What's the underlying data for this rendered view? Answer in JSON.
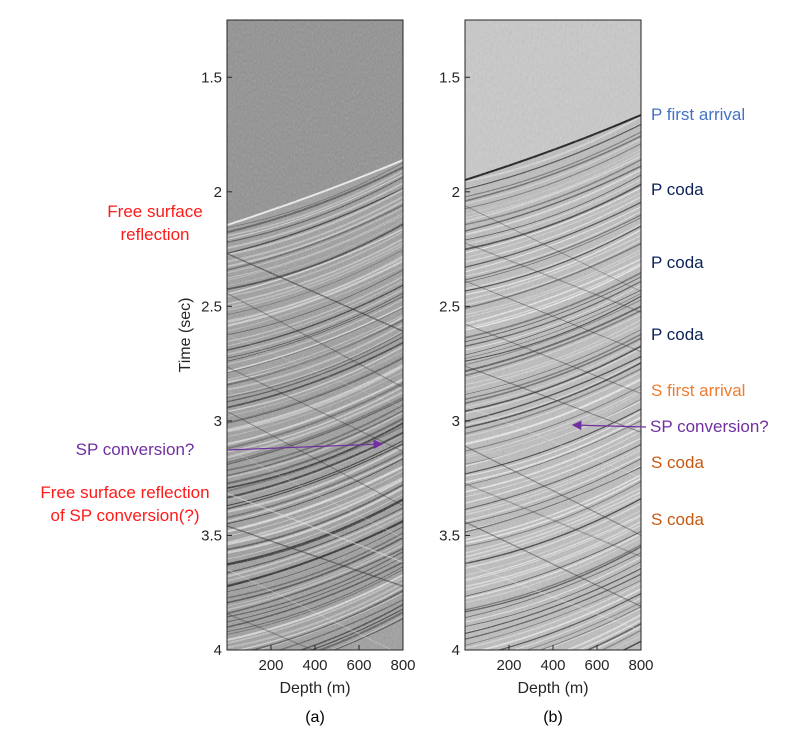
{
  "panels": [
    {
      "id": "a",
      "caption": "(a)",
      "xlabel": "Depth (m)",
      "ylabel": "Time (sec)",
      "xticks": [
        "200",
        "400",
        "600",
        "800"
      ],
      "yticks": [
        "1.5",
        "2",
        "2.5",
        "3",
        "3.5",
        "4"
      ],
      "annotations": [
        {
          "text": "Free surface",
          "color": "#ff1a1a"
        },
        {
          "text": "reflection",
          "color": "#ff1a1a"
        },
        {
          "text": "SP conversion?",
          "color": "#7030a0"
        },
        {
          "text": "Free surface reflection",
          "color": "#ff1a1a"
        },
        {
          "text": "of SP conversion(?)",
          "color": "#ff1a1a"
        }
      ]
    },
    {
      "id": "b",
      "caption": "(b)",
      "xlabel": "Depth (m)",
      "yticks": [
        "1.5",
        "2",
        "2.5",
        "3",
        "3.5",
        "4"
      ],
      "xticks": [
        "200",
        "400",
        "600",
        "800"
      ],
      "annotations": [
        {
          "text": "P first arrival",
          "color": "#4472c4"
        },
        {
          "text": "P coda",
          "color": "#0d2257"
        },
        {
          "text": "P coda",
          "color": "#0d2257"
        },
        {
          "text": "P coda",
          "color": "#0d2257"
        },
        {
          "text": "S first arrival",
          "color": "#ed7d31"
        },
        {
          "text": "SP conversion?",
          "color": "#7030a0"
        },
        {
          "text": "S coda",
          "color": "#c55a11"
        },
        {
          "text": "S coda",
          "color": "#c55a11"
        }
      ]
    }
  ],
  "colors": {
    "arrow": "#7030a0",
    "axis": "#262626"
  }
}
